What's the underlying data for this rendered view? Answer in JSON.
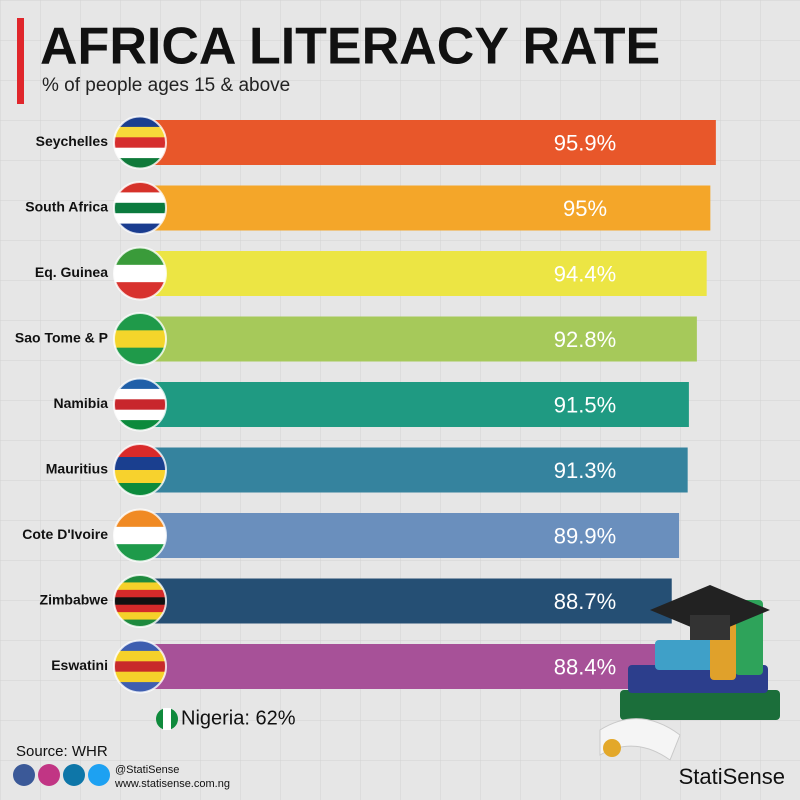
{
  "chart_data": {
    "type": "bar",
    "orientation": "horizontal",
    "title": "AFRICA LITERACY RATE",
    "subtitle": "% of people ages 15 & above",
    "categories": [
      "Seychelles",
      "South Africa",
      "Eq. Guinea",
      "Sao Tome & P",
      "Namibia",
      "Mauritius",
      "Cote D'Ivoire",
      "Zimbabwe",
      "Eswatini"
    ],
    "values": [
      95.9,
      95,
      94.4,
      92.8,
      91.5,
      91.3,
      89.9,
      88.7,
      88.4
    ],
    "value_labels": [
      "95.9%",
      "95%",
      "94.4%",
      "92.8%",
      "91.5%",
      "91.3%",
      "89.9%",
      "88.7%",
      "88.4%"
    ],
    "colors": [
      "#e8572a",
      "#f4a629",
      "#ece544",
      "#a6c95a",
      "#1f9a82",
      "#35839e",
      "#6a8fbd",
      "#254f74",
      "#a75198"
    ],
    "xlim": [
      0,
      100
    ],
    "annotation": "Nigeria: 62%",
    "source": "Source: WHR",
    "handle": "@StatiSense",
    "website": "www.statisense.com.ng",
    "brand": "StatiSense"
  }
}
